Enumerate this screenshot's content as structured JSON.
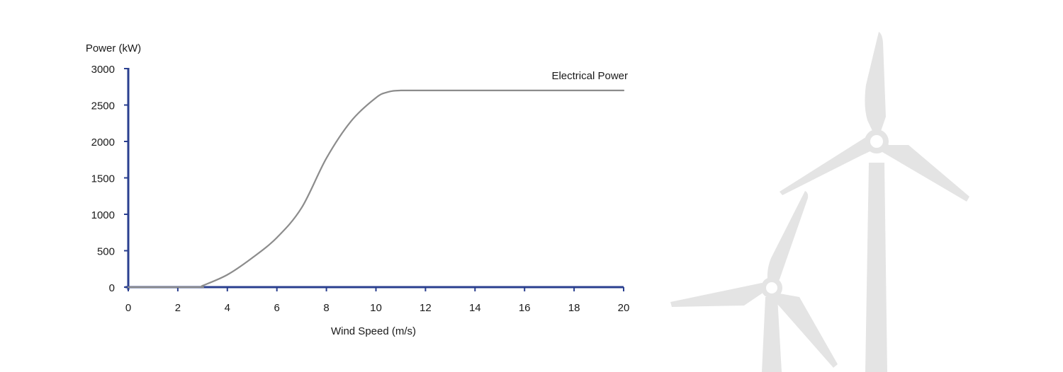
{
  "chart_data": {
    "type": "line",
    "xlabel": "Wind Speed (m/s)",
    "ylabel": "Power (kW)",
    "xlim": [
      0,
      20
    ],
    "ylim": [
      0,
      3000
    ],
    "xticks": [
      0,
      2,
      4,
      6,
      8,
      10,
      12,
      14,
      16,
      18,
      20
    ],
    "yticks": [
      0,
      500,
      1000,
      1500,
      2000,
      2500,
      3000
    ],
    "grid": false,
    "series": [
      {
        "name": "Electrical Power",
        "x": [
          0,
          2.8,
          3,
          4,
          5,
          6,
          7,
          8,
          9,
          10,
          10.5,
          11,
          12,
          14,
          16,
          18,
          20
        ],
        "y": [
          0,
          0,
          20,
          170,
          400,
          680,
          1090,
          1770,
          2280,
          2600,
          2680,
          2700,
          2700,
          2700,
          2700,
          2700,
          2700
        ]
      }
    ],
    "colors": {
      "axis": "#2a3f8f",
      "line": "#8c8c8c",
      "background_art": "#e4e4e4"
    }
  },
  "decoration": {
    "background_icon": "wind-turbines-icon"
  }
}
